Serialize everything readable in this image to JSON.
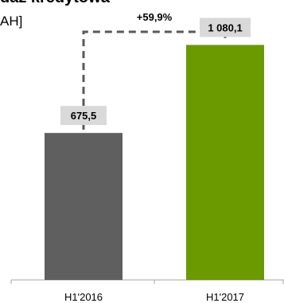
{
  "chart_data": {
    "type": "bar",
    "title": "daż kredytowa",
    "unit_label": "AH]",
    "categories": [
      "H1'2016",
      "H1'2017"
    ],
    "values": [
      675.5,
      1080.1
    ],
    "value_labels": [
      "675,5",
      "1 080,1"
    ],
    "bar_colors": [
      "#5f5f5f",
      "#6a9a00"
    ],
    "growth_label": "+59,9%",
    "label_box_color": "#d9d9d9",
    "connector_color": "#595959",
    "axis_color": "#a6a6a6",
    "ylim": [
      0,
      1250
    ],
    "grid": false,
    "legend": "none"
  }
}
